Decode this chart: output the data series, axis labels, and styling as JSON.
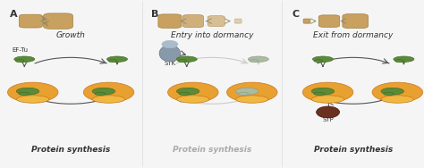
{
  "bg_color": "#f5f5f5",
  "panel_labels": [
    "A",
    "B",
    "C"
  ],
  "panel_titles": [
    "Growth",
    "Entry into dormancy",
    "Exit from dormancy"
  ],
  "ribosome_color": "#e8a030",
  "ribosome_small_color": "#f0b840",
  "trna_color": "#5a8a3a",
  "trna_faded_color": "#aabba0",
  "capsule_color": "#c8a060",
  "stk_body_color": "#8899aa",
  "stk_head_color": "#aabbcc",
  "stp_color": "#6b3020",
  "arrow_color": "#555555",
  "arrow_faded_color": "#cccccc",
  "text_color": "#333333",
  "text_faded_color": "#aaaaaa",
  "label_fontsize": 7,
  "title_fontsize": 6.5,
  "panel_label_fontsize": 8
}
